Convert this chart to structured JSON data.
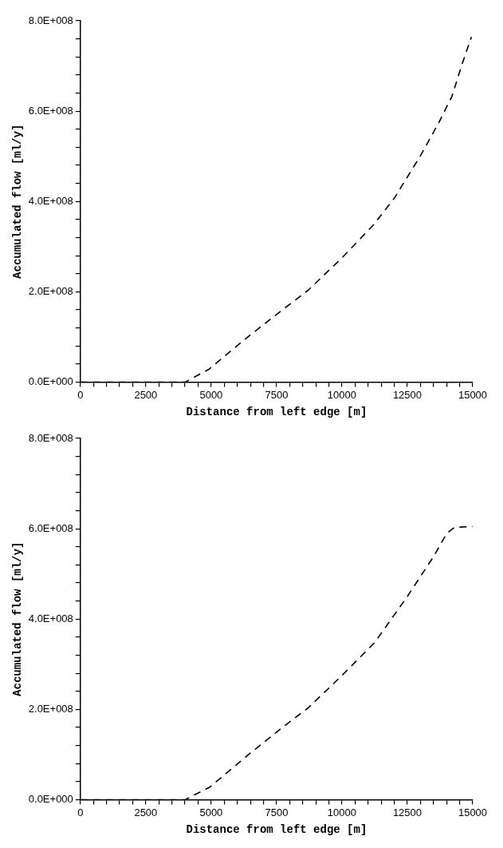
{
  "chart_data": [
    {
      "type": "line",
      "xlabel": "Distance from left edge [m]",
      "ylabel": "Accumulated flow [ml/y]",
      "line_style": "dashed",
      "marker": "none",
      "xlim": [
        0,
        15000
      ],
      "ylim": [
        0,
        800000000
      ],
      "xticks": [
        0,
        {
          "value": 500,
          "label": null
        },
        {
          "value": 1000,
          "label": null
        },
        {
          "value": 1500,
          "label": null
        },
        {
          "value": 2000,
          "label": null
        },
        2500,
        {
          "value": 3000,
          "label": null
        },
        {
          "value": 3500,
          "label": null
        },
        {
          "value": 4000,
          "label": null
        },
        {
          "value": 4500,
          "label": null
        },
        5000,
        {
          "value": 5500,
          "label": null
        },
        {
          "value": 6000,
          "label": null
        },
        {
          "value": 6500,
          "label": null
        },
        {
          "value": 7000,
          "label": null
        },
        7500,
        {
          "value": 8000,
          "label": null
        },
        {
          "value": 8500,
          "label": null
        },
        {
          "value": 9000,
          "label": null
        },
        {
          "value": 9500,
          "label": null
        },
        10000,
        {
          "value": 10500,
          "label": null
        },
        {
          "value": 11000,
          "label": null
        },
        {
          "value": 11500,
          "label": null
        },
        {
          "value": 12000,
          "label": null
        },
        12500,
        {
          "value": 13000,
          "label": null
        },
        {
          "value": 13500,
          "label": null
        },
        {
          "value": 14000,
          "label": null
        },
        {
          "value": 14500,
          "label": null
        },
        15000
      ],
      "yticks": [
        {
          "value": 0,
          "label": "0.0E+000"
        },
        {
          "value": 40000000,
          "label": null
        },
        {
          "value": 80000000,
          "label": null
        },
        {
          "value": 120000000,
          "label": null
        },
        {
          "value": 160000000,
          "label": null
        },
        {
          "value": 200000000,
          "label": "2.0E+008"
        },
        {
          "value": 240000000,
          "label": null
        },
        {
          "value": 280000000,
          "label": null
        },
        {
          "value": 320000000,
          "label": null
        },
        {
          "value": 360000000,
          "label": null
        },
        {
          "value": 400000000,
          "label": "4.0E+008"
        },
        {
          "value": 440000000,
          "label": null
        },
        {
          "value": 480000000,
          "label": null
        },
        {
          "value": 520000000,
          "label": null
        },
        {
          "value": 560000000,
          "label": null
        },
        {
          "value": 600000000,
          "label": "6.0E+008"
        },
        {
          "value": 640000000,
          "label": null
        },
        {
          "value": 680000000,
          "label": null
        },
        {
          "value": 720000000,
          "label": null
        },
        {
          "value": 760000000,
          "label": null
        },
        {
          "value": 800000000,
          "label": "8.0E+008"
        }
      ],
      "x": [
        0,
        4000,
        4900,
        6400,
        7700,
        8700,
        10000,
        11200,
        12000,
        13000,
        13700,
        14200,
        14600,
        14950
      ],
      "series": [
        {
          "color": "#000000",
          "values": [
            0,
            0,
            28000000,
            100000000,
            159000000,
            203000000,
            275000000,
            348000000,
            407000000,
            501000000,
            574000000,
            632000000,
            705000000,
            764000000
          ]
        }
      ]
    },
    {
      "type": "line",
      "xlabel": "Distance from left edge [m]",
      "ylabel": "Accumulated flow [ml/y]",
      "line_style": "dashed",
      "marker": "none",
      "xlim": [
        0,
        15000
      ],
      "ylim": [
        0,
        800000000
      ],
      "xticks": [
        0,
        {
          "value": 500,
          "label": null
        },
        {
          "value": 1000,
          "label": null
        },
        {
          "value": 1500,
          "label": null
        },
        {
          "value": 2000,
          "label": null
        },
        2500,
        {
          "value": 3000,
          "label": null
        },
        {
          "value": 3500,
          "label": null
        },
        {
          "value": 4000,
          "label": null
        },
        {
          "value": 4500,
          "label": null
        },
        5000,
        {
          "value": 5500,
          "label": null
        },
        {
          "value": 6000,
          "label": null
        },
        {
          "value": 6500,
          "label": null
        },
        {
          "value": 7000,
          "label": null
        },
        7500,
        {
          "value": 8000,
          "label": null
        },
        {
          "value": 8500,
          "label": null
        },
        {
          "value": 9000,
          "label": null
        },
        {
          "value": 9500,
          "label": null
        },
        10000,
        {
          "value": 10500,
          "label": null
        },
        {
          "value": 11000,
          "label": null
        },
        {
          "value": 11500,
          "label": null
        },
        {
          "value": 12000,
          "label": null
        },
        12500,
        {
          "value": 13000,
          "label": null
        },
        {
          "value": 13500,
          "label": null
        },
        {
          "value": 14000,
          "label": null
        },
        {
          "value": 14500,
          "label": null
        },
        15000
      ],
      "yticks": [
        {
          "value": 0,
          "label": "0.0E+000"
        },
        {
          "value": 40000000,
          "label": null
        },
        {
          "value": 80000000,
          "label": null
        },
        {
          "value": 120000000,
          "label": null
        },
        {
          "value": 160000000,
          "label": null
        },
        {
          "value": 200000000,
          "label": "2.0E+008"
        },
        {
          "value": 240000000,
          "label": null
        },
        {
          "value": 280000000,
          "label": null
        },
        {
          "value": 320000000,
          "label": null
        },
        {
          "value": 360000000,
          "label": null
        },
        {
          "value": 400000000,
          "label": "4.0E+008"
        },
        {
          "value": 440000000,
          "label": null
        },
        {
          "value": 480000000,
          "label": null
        },
        {
          "value": 520000000,
          "label": null
        },
        {
          "value": 560000000,
          "label": null
        },
        {
          "value": 600000000,
          "label": "6.0E+008"
        },
        {
          "value": 640000000,
          "label": null
        },
        {
          "value": 680000000,
          "label": null
        },
        {
          "value": 720000000,
          "label": null
        },
        {
          "value": 760000000,
          "label": null
        },
        {
          "value": 800000000,
          "label": "8.0E+008"
        }
      ],
      "x": [
        0,
        4000,
        4950,
        6450,
        7700,
        8700,
        10000,
        11250,
        12500,
        13500,
        14000,
        14300,
        15000
      ],
      "series": [
        {
          "color": "#000000",
          "values": [
            0,
            0,
            28000000,
            101000000,
            159000000,
            203000000,
            275000000,
            348000000,
            450000000,
            538000000,
            589000000,
            603000000,
            605000000
          ]
        }
      ]
    }
  ]
}
